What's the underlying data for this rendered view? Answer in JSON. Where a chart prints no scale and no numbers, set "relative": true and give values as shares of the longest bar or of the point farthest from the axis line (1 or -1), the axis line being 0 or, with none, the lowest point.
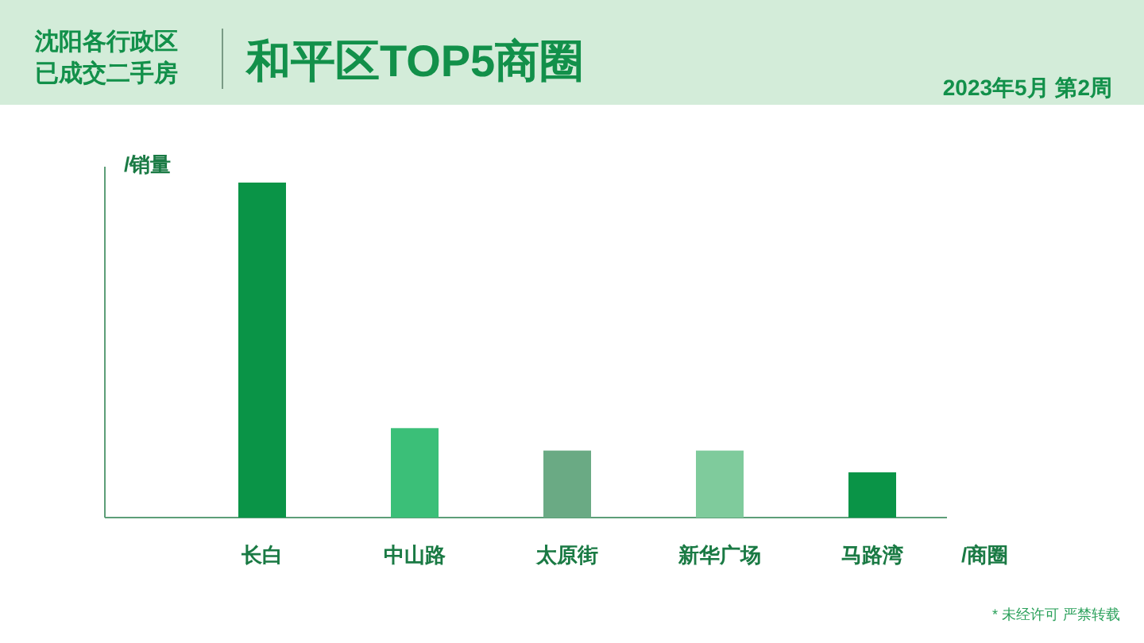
{
  "chart_data": {
    "type": "bar",
    "title": "和平区TOP5商圈",
    "subtitle": "沈阳各行政区已成交二手房",
    "ylabel": "/销量",
    "xlabel": "/商圈",
    "relative": true,
    "annotations": [
      "2023年5月 第2周",
      "* 未经许可 严禁转载"
    ],
    "categories": [
      "长白",
      "中山路",
      "太原街",
      "新华广场",
      "马路湾"
    ],
    "values": [
      1,
      0.267,
      0.2,
      0.2,
      0.135
    ],
    "colors": [
      "#0a9447",
      "#3bbf78",
      "#6aaa84",
      "#7fcb9c",
      "#0a9447"
    ]
  }
}
